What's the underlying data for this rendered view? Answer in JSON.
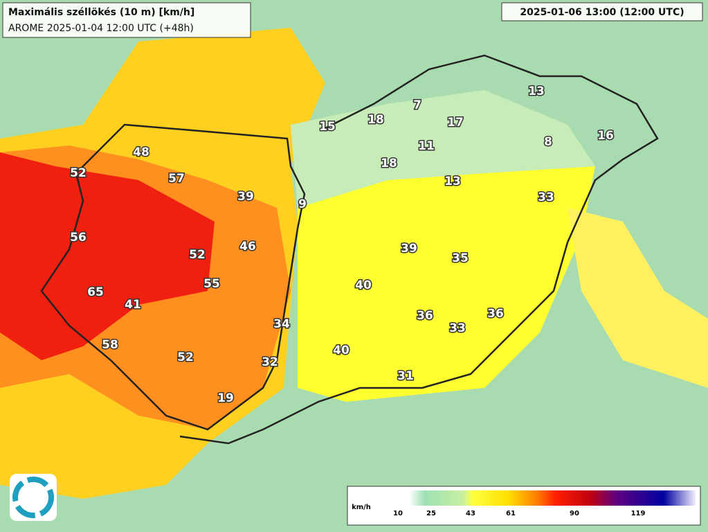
{
  "header": {
    "title": "Maximális széllökés (10 m) [km/h]",
    "subtitle": "AROME 2025-01-04 12:00 UTC (+48h)",
    "valid_time": "2025-01-06 13:00 (12:00 UTC)"
  },
  "stations": [
    48,
    52,
    57,
    39,
    9,
    56,
    52,
    46,
    55,
    65,
    41,
    40,
    39,
    35,
    33,
    13,
    18,
    11,
    17,
    8,
    16,
    13,
    7,
    18,
    15,
    34,
    36,
    33,
    36,
    58,
    52,
    32,
    40,
    31,
    19
  ],
  "legend": {
    "unit": "km/h",
    "ticks": [
      10,
      25,
      43,
      61,
      90,
      119
    ]
  }
}
